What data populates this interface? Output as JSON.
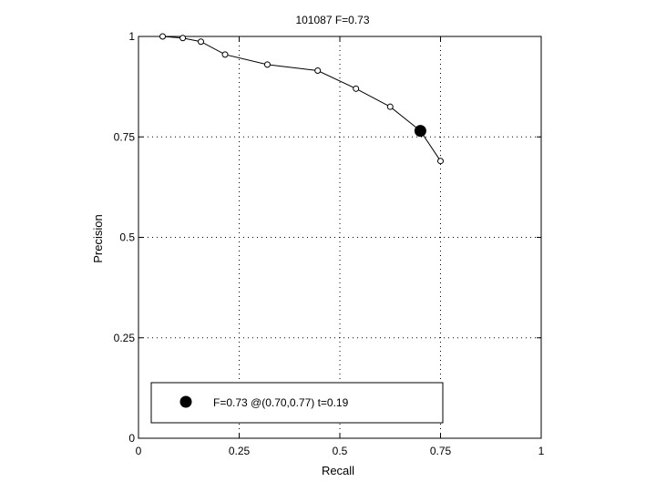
{
  "chart_data": {
    "type": "line",
    "title": "101087 F=0.73",
    "xlabel": "Recall",
    "ylabel": "Precision",
    "xlim": [
      0,
      1
    ],
    "ylim": [
      0,
      1
    ],
    "grid": true,
    "x_ticks": [
      0,
      0.25,
      0.5,
      0.75,
      1
    ],
    "x_tick_labels": [
      "0",
      "0.25",
      "0.5",
      "0.75",
      "1"
    ],
    "y_ticks": [
      0,
      0.25,
      0.5,
      0.75,
      1
    ],
    "y_tick_labels": [
      "0",
      "0.25",
      "0.5",
      "0.75",
      "1"
    ],
    "series": [
      {
        "x": [
          0.06,
          0.11,
          0.155,
          0.215,
          0.32,
          0.445,
          0.54,
          0.625,
          0.7,
          0.75
        ],
        "y": [
          1.0,
          0.996,
          0.987,
          0.955,
          0.93,
          0.915,
          0.87,
          0.825,
          0.765,
          0.69
        ]
      }
    ],
    "highlight_point": {
      "x": 0.7,
      "y": 0.765
    },
    "legend": {
      "placement": "bottom",
      "entries": [
        {
          "label": "F=0.73 @(0.70,0.77) t=0.19"
        }
      ]
    }
  }
}
